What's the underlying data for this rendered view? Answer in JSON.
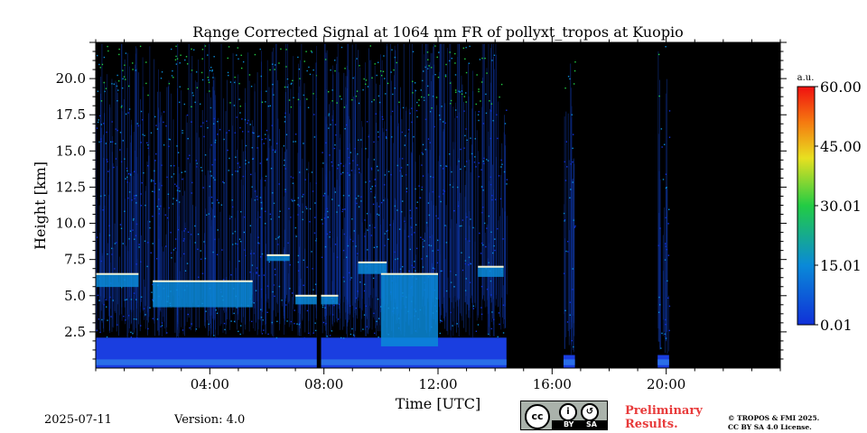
{
  "chart_data": {
    "type": "heatmap",
    "title": "Range Corrected Signal at 1064 nm FR of pollyxt_tropos at Kuopio",
    "xlabel": "Time [UTC]",
    "ylabel": "Height [km]",
    "x_range_hours": [
      0,
      24
    ],
    "y_range_km": [
      0,
      22.5
    ],
    "x_ticks": [
      {
        "value": 4,
        "label": "04:00"
      },
      {
        "value": 8,
        "label": "08:00"
      },
      {
        "value": 12,
        "label": "12:00"
      },
      {
        "value": 16,
        "label": "16:00"
      },
      {
        "value": 20,
        "label": "20:00"
      }
    ],
    "y_ticks": [
      {
        "value": 2.5,
        "label": "2.5"
      },
      {
        "value": 5.0,
        "label": "5.0"
      },
      {
        "value": 7.5,
        "label": "7.5"
      },
      {
        "value": 10.0,
        "label": "10.0"
      },
      {
        "value": 12.5,
        "label": "12.5"
      },
      {
        "value": 15.0,
        "label": "15.0"
      },
      {
        "value": 17.5,
        "label": "17.5"
      },
      {
        "value": 20.0,
        "label": "20.0"
      }
    ],
    "colorbar": {
      "unit": "a.u.",
      "range": [
        0.01,
        60.0
      ],
      "ticks": [
        {
          "value": 0.01,
          "label": "0.01"
        },
        {
          "value": 15.01,
          "label": "15.01"
        },
        {
          "value": 30.01,
          "label": "30.01"
        },
        {
          "value": 45.0,
          "label": "45.00"
        },
        {
          "value": 60.0,
          "label": "60.00"
        }
      ],
      "colormap": "jet",
      "stops": [
        "#1030d8",
        "#0a8ad8",
        "#22cc44",
        "#e8e020",
        "#f57a10",
        "#f01010"
      ]
    },
    "background_color": "#000000",
    "measurement_periods_hours": [
      [
        0,
        14.4
      ],
      [
        16.4,
        16.8
      ],
      [
        19.7,
        20.1
      ]
    ],
    "gap_hours": [
      7.75,
      7.9
    ],
    "cloud_layers": [
      {
        "t0": 0.0,
        "t1": 1.5,
        "h0": 5.6,
        "h1": 6.5
      },
      {
        "t0": 2.0,
        "t1": 5.5,
        "h0": 4.2,
        "h1": 6.0
      },
      {
        "t0": 6.0,
        "t1": 6.8,
        "h0": 7.4,
        "h1": 7.8
      },
      {
        "t0": 7.0,
        "t1": 8.5,
        "h0": 4.4,
        "h1": 5.0
      },
      {
        "t0": 9.2,
        "t1": 10.2,
        "h0": 6.5,
        "h1": 7.3
      },
      {
        "t0": 10.0,
        "t1": 12.0,
        "h0": 1.5,
        "h1": 6.5
      },
      {
        "t0": 13.4,
        "t1": 14.3,
        "h0": 6.3,
        "h1": 7.0
      }
    ]
  },
  "footer": {
    "date": "2025-07-11",
    "version": "Version: 4.0",
    "license_badge": {
      "cc": "cc",
      "by": "BY",
      "sa": "SA"
    },
    "preliminary_line1": "Preliminary",
    "preliminary_line2": "Results.",
    "copyright_line1": "© TROPOS & FMI 2025.",
    "copyright_line2": "CC BY SA 4.0 License."
  }
}
